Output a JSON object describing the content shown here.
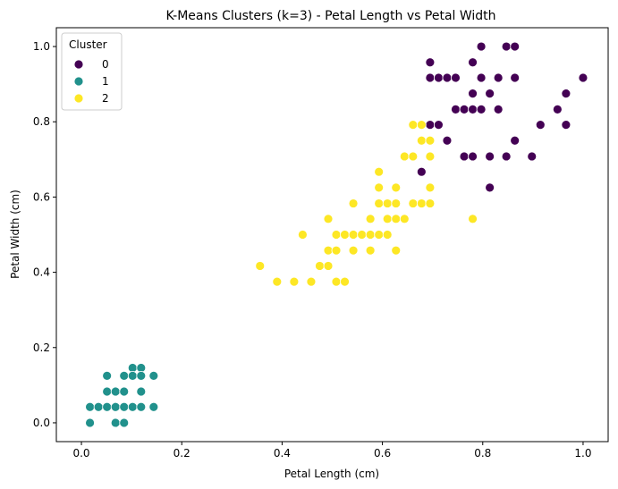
{
  "chart_data": {
    "type": "scatter",
    "title": "K-Means Clusters (k=3) - Petal Length vs Petal Width",
    "xlabel": "Petal Length (cm)",
    "ylabel": "Petal Width (cm)",
    "xlim": [
      -0.05,
      1.05
    ],
    "ylim": [
      -0.05,
      1.05
    ],
    "xticks": [
      0.0,
      0.2,
      0.4,
      0.6,
      0.8,
      1.0
    ],
    "yticks": [
      0.0,
      0.2,
      0.4,
      0.6,
      0.8,
      1.0
    ],
    "xtick_labels": [
      "0.0",
      "0.2",
      "0.4",
      "0.6",
      "0.8",
      "1.0"
    ],
    "ytick_labels": [
      "0.0",
      "0.2",
      "0.4",
      "0.6",
      "0.8",
      "1.0"
    ],
    "grid": false,
    "legend": {
      "title": "Cluster",
      "placement": "top-left"
    },
    "series": [
      {
        "name": "0",
        "color": "#440154",
        "points": [
          [
            0.695,
            0.958
          ],
          [
            0.78,
            0.958
          ],
          [
            0.797,
            1.0
          ],
          [
            0.847,
            1.0
          ],
          [
            0.864,
            1.0
          ],
          [
            0.695,
            0.917
          ],
          [
            0.712,
            0.917
          ],
          [
            0.729,
            0.917
          ],
          [
            0.746,
            0.917
          ],
          [
            0.797,
            0.917
          ],
          [
            0.831,
            0.917
          ],
          [
            0.864,
            0.917
          ],
          [
            1.0,
            0.917
          ],
          [
            0.78,
            0.875
          ],
          [
            0.814,
            0.875
          ],
          [
            0.966,
            0.875
          ],
          [
            0.746,
            0.833
          ],
          [
            0.763,
            0.833
          ],
          [
            0.78,
            0.833
          ],
          [
            0.797,
            0.833
          ],
          [
            0.831,
            0.833
          ],
          [
            0.949,
            0.833
          ],
          [
            0.695,
            0.792
          ],
          [
            0.712,
            0.792
          ],
          [
            0.915,
            0.792
          ],
          [
            0.966,
            0.792
          ],
          [
            0.729,
            0.75
          ],
          [
            0.864,
            0.75
          ],
          [
            0.763,
            0.708
          ],
          [
            0.78,
            0.708
          ],
          [
            0.814,
            0.708
          ],
          [
            0.847,
            0.708
          ],
          [
            0.898,
            0.708
          ],
          [
            0.678,
            0.667
          ],
          [
            0.814,
            0.625
          ]
        ]
      },
      {
        "name": "1",
        "color": "#21918c",
        "points": [
          [
            0.102,
            0.146
          ],
          [
            0.119,
            0.146
          ],
          [
            0.051,
            0.125
          ],
          [
            0.085,
            0.125
          ],
          [
            0.102,
            0.125
          ],
          [
            0.119,
            0.125
          ],
          [
            0.144,
            0.125
          ],
          [
            0.051,
            0.083
          ],
          [
            0.068,
            0.083
          ],
          [
            0.085,
            0.083
          ],
          [
            0.119,
            0.083
          ],
          [
            0.017,
            0.042
          ],
          [
            0.034,
            0.042
          ],
          [
            0.051,
            0.042
          ],
          [
            0.068,
            0.042
          ],
          [
            0.085,
            0.042
          ],
          [
            0.102,
            0.042
          ],
          [
            0.119,
            0.042
          ],
          [
            0.144,
            0.042
          ],
          [
            0.017,
            0.0
          ],
          [
            0.068,
            0.0
          ],
          [
            0.085,
            0.0
          ]
        ]
      },
      {
        "name": "2",
        "color": "#fde725",
        "points": [
          [
            0.661,
            0.792
          ],
          [
            0.678,
            0.792
          ],
          [
            0.678,
            0.75
          ],
          [
            0.695,
            0.75
          ],
          [
            0.644,
            0.708
          ],
          [
            0.661,
            0.708
          ],
          [
            0.695,
            0.708
          ],
          [
            0.593,
            0.667
          ],
          [
            0.593,
            0.625
          ],
          [
            0.627,
            0.625
          ],
          [
            0.695,
            0.625
          ],
          [
            0.542,
            0.583
          ],
          [
            0.593,
            0.583
          ],
          [
            0.61,
            0.583
          ],
          [
            0.627,
            0.583
          ],
          [
            0.661,
            0.583
          ],
          [
            0.678,
            0.583
          ],
          [
            0.695,
            0.583
          ],
          [
            0.492,
            0.542
          ],
          [
            0.576,
            0.542
          ],
          [
            0.61,
            0.542
          ],
          [
            0.627,
            0.542
          ],
          [
            0.644,
            0.542
          ],
          [
            0.78,
            0.542
          ],
          [
            0.441,
            0.5
          ],
          [
            0.508,
            0.5
          ],
          [
            0.525,
            0.5
          ],
          [
            0.542,
            0.5
          ],
          [
            0.559,
            0.5
          ],
          [
            0.576,
            0.5
          ],
          [
            0.593,
            0.5
          ],
          [
            0.61,
            0.5
          ],
          [
            0.492,
            0.458
          ],
          [
            0.508,
            0.458
          ],
          [
            0.542,
            0.458
          ],
          [
            0.576,
            0.458
          ],
          [
            0.627,
            0.458
          ],
          [
            0.475,
            0.417
          ],
          [
            0.492,
            0.417
          ],
          [
            0.356,
            0.417
          ],
          [
            0.39,
            0.375
          ],
          [
            0.424,
            0.375
          ],
          [
            0.458,
            0.375
          ],
          [
            0.508,
            0.375
          ],
          [
            0.525,
            0.375
          ]
        ]
      }
    ]
  }
}
